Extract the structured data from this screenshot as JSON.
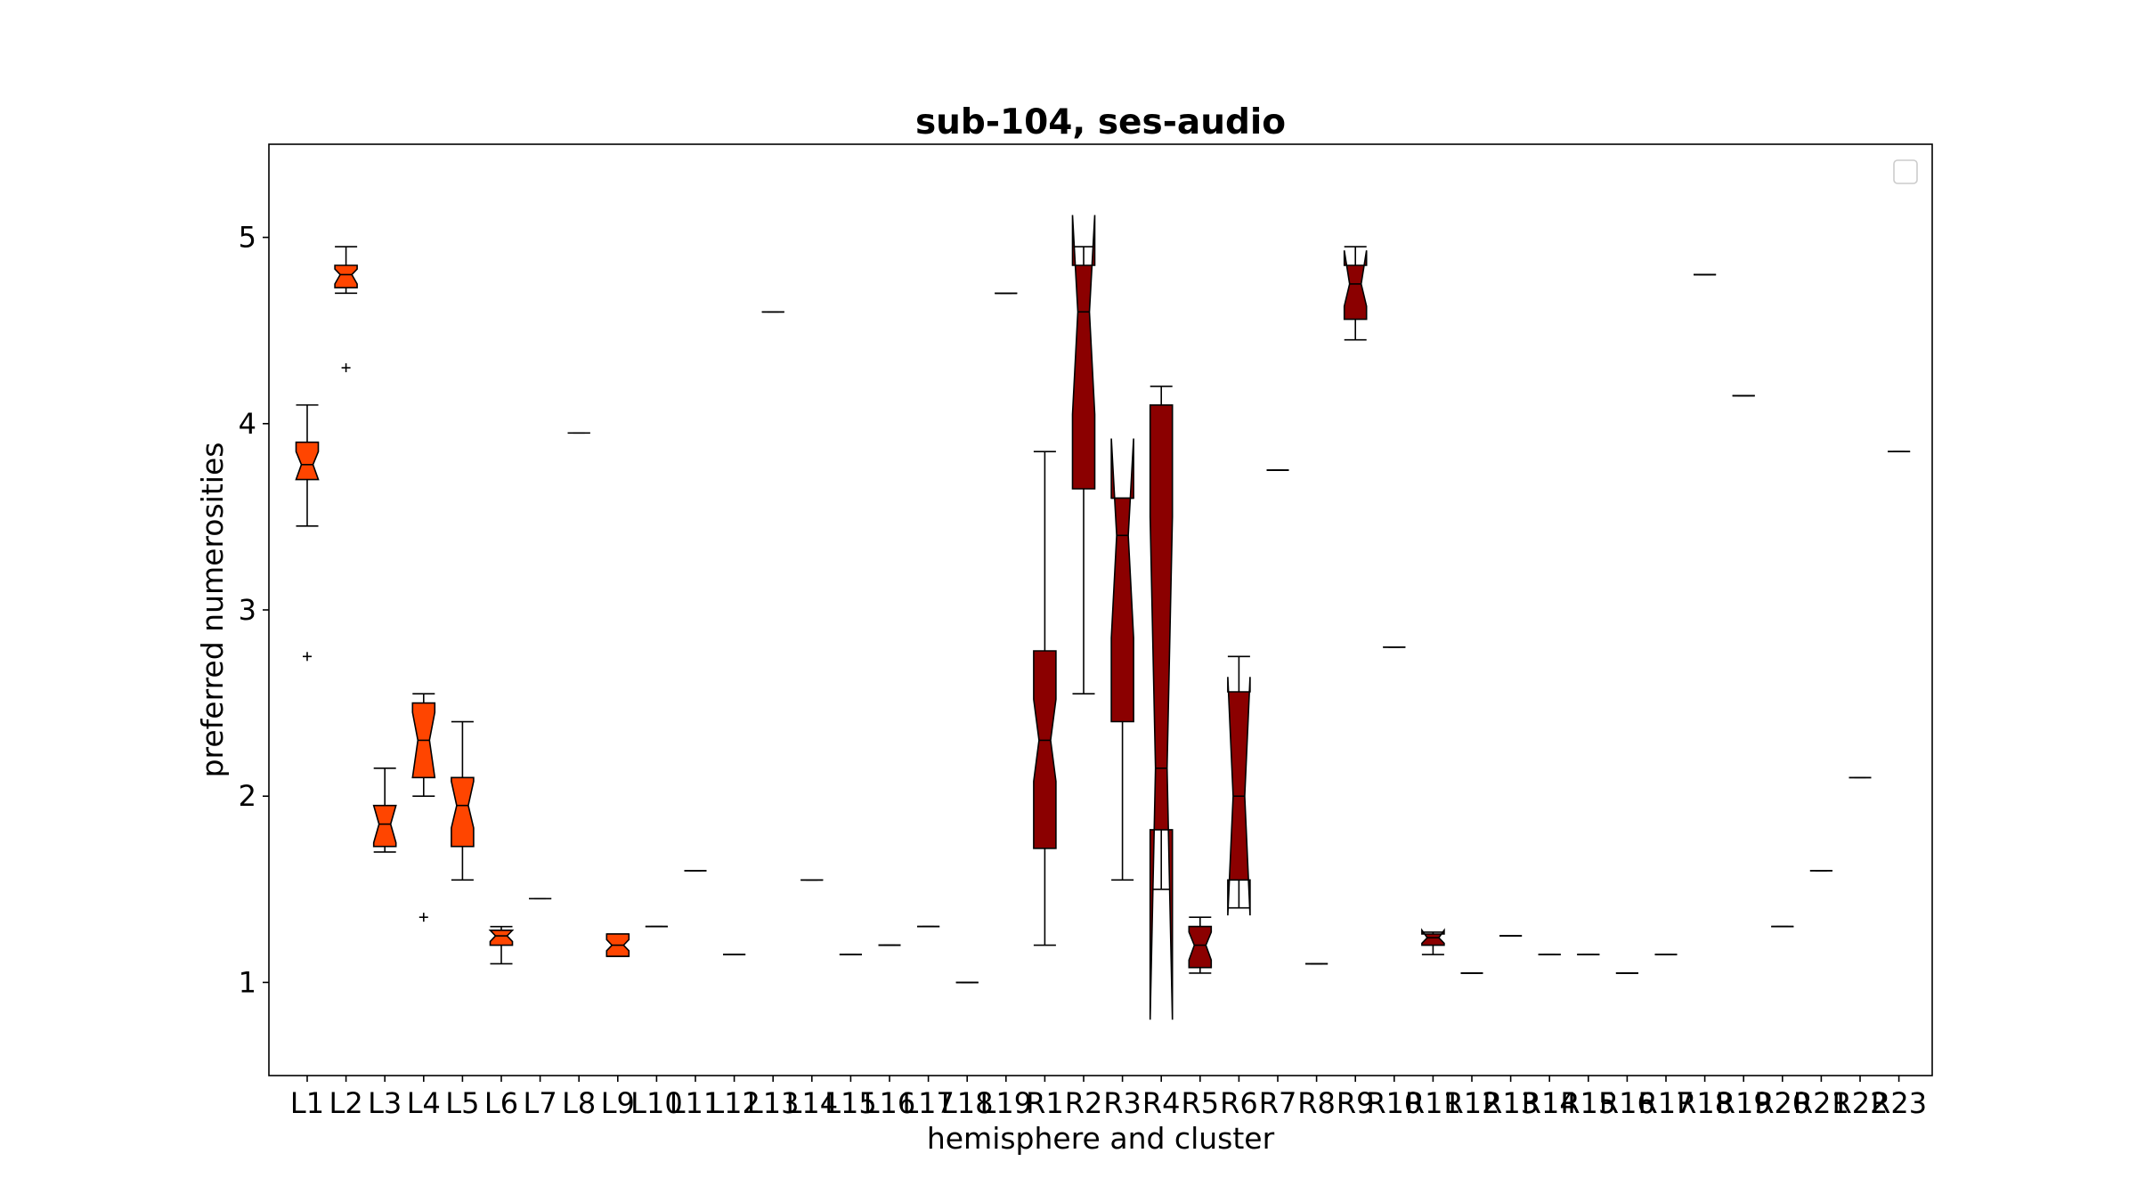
{
  "chart_data": {
    "type": "boxplot",
    "title": "sub-104, ses-audio",
    "xlabel": "hemisphere and cluster",
    "ylabel": "preferred numerosities",
    "ylim": [
      0.5,
      5.5
    ],
    "yticks": [
      1,
      2,
      3,
      4,
      5
    ],
    "notched": true,
    "legend": {
      "placement": "top-right",
      "entries": []
    },
    "colors": {
      "left": "#ff4500",
      "right": "#8b0000",
      "edge": "#000000"
    },
    "categories": [
      "L1",
      "L2",
      "L3",
      "L4",
      "L5",
      "L6",
      "L7",
      "L8",
      "L9",
      "L10",
      "L11",
      "L12",
      "L13",
      "L14",
      "L15",
      "L16",
      "L17",
      "L18",
      "L19",
      "R1",
      "R2",
      "R3",
      "R4",
      "R5",
      "R6",
      "R7",
      "R8",
      "R9",
      "R10",
      "R11",
      "R12",
      "R13",
      "R14",
      "R15",
      "R16",
      "R17",
      "R18",
      "R19",
      "R20",
      "R21",
      "R22",
      "R23"
    ],
    "boxes": [
      {
        "label": "L1",
        "group": "left",
        "whislo": 3.45,
        "q1": 3.7,
        "med": 3.78,
        "q3": 3.9,
        "whishi": 4.1,
        "notch_lo": 3.7,
        "notch_hi": 3.85,
        "fliers": [
          2.75
        ]
      },
      {
        "label": "L2",
        "group": "left",
        "whislo": 4.7,
        "q1": 4.73,
        "med": 4.8,
        "q3": 4.85,
        "whishi": 4.95,
        "notch_lo": 4.75,
        "notch_hi": 4.83,
        "fliers": [
          4.3
        ]
      },
      {
        "label": "L3",
        "group": "left",
        "whislo": 1.7,
        "q1": 1.73,
        "med": 1.85,
        "q3": 1.95,
        "whishi": 2.15,
        "notch_lo": 1.75,
        "notch_hi": 1.95,
        "fliers": []
      },
      {
        "label": "L4",
        "group": "left",
        "whislo": 2.0,
        "q1": 2.1,
        "med": 2.3,
        "q3": 2.5,
        "whishi": 2.55,
        "notch_lo": 2.1,
        "notch_hi": 2.45,
        "fliers": [
          1.35
        ]
      },
      {
        "label": "L5",
        "group": "left",
        "whislo": 1.55,
        "q1": 1.73,
        "med": 1.95,
        "q3": 2.1,
        "whishi": 2.4,
        "notch_lo": 1.83,
        "notch_hi": 2.08,
        "fliers": []
      },
      {
        "label": "L6",
        "group": "left",
        "whislo": 1.1,
        "q1": 1.2,
        "med": 1.25,
        "q3": 1.28,
        "whishi": 1.3,
        "notch_lo": 1.22,
        "notch_hi": 1.28,
        "fliers": []
      },
      {
        "label": "L7",
        "group": "left",
        "whislo": 1.45,
        "q1": 1.45,
        "med": 1.45,
        "q3": 1.45,
        "whishi": 1.45,
        "notch_lo": 1.45,
        "notch_hi": 1.45,
        "fliers": []
      },
      {
        "label": "L8",
        "group": "left",
        "whislo": 3.95,
        "q1": 3.95,
        "med": 3.95,
        "q3": 3.95,
        "whishi": 3.95,
        "notch_lo": 3.95,
        "notch_hi": 3.95,
        "fliers": []
      },
      {
        "label": "L9",
        "group": "left",
        "whislo": 1.14,
        "q1": 1.14,
        "med": 1.2,
        "q3": 1.26,
        "whishi": 1.26,
        "notch_lo": 1.17,
        "notch_hi": 1.23,
        "fliers": []
      },
      {
        "label": "L10",
        "group": "left",
        "whislo": 1.3,
        "q1": 1.3,
        "med": 1.3,
        "q3": 1.3,
        "whishi": 1.3,
        "notch_lo": 1.3,
        "notch_hi": 1.3,
        "fliers": []
      },
      {
        "label": "L11",
        "group": "left",
        "whislo": 1.6,
        "q1": 1.6,
        "med": 1.6,
        "q3": 1.6,
        "whishi": 1.6,
        "notch_lo": 1.6,
        "notch_hi": 1.6,
        "fliers": []
      },
      {
        "label": "L12",
        "group": "left",
        "whislo": 1.15,
        "q1": 1.15,
        "med": 1.15,
        "q3": 1.15,
        "whishi": 1.15,
        "notch_lo": 1.15,
        "notch_hi": 1.15,
        "fliers": []
      },
      {
        "label": "L13",
        "group": "left",
        "whislo": 4.6,
        "q1": 4.6,
        "med": 4.6,
        "q3": 4.6,
        "whishi": 4.6,
        "notch_lo": 4.6,
        "notch_hi": 4.6,
        "fliers": []
      },
      {
        "label": "L14",
        "group": "left",
        "whislo": 1.55,
        "q1": 1.55,
        "med": 1.55,
        "q3": 1.55,
        "whishi": 1.55,
        "notch_lo": 1.55,
        "notch_hi": 1.55,
        "fliers": []
      },
      {
        "label": "L15",
        "group": "left",
        "whislo": 1.15,
        "q1": 1.15,
        "med": 1.15,
        "q3": 1.15,
        "whishi": 1.15,
        "notch_lo": 1.15,
        "notch_hi": 1.15,
        "fliers": []
      },
      {
        "label": "L16",
        "group": "left",
        "whislo": 1.2,
        "q1": 1.2,
        "med": 1.2,
        "q3": 1.2,
        "whishi": 1.2,
        "notch_lo": 1.2,
        "notch_hi": 1.2,
        "fliers": []
      },
      {
        "label": "L17",
        "group": "left",
        "whislo": 1.3,
        "q1": 1.3,
        "med": 1.3,
        "q3": 1.3,
        "whishi": 1.3,
        "notch_lo": 1.3,
        "notch_hi": 1.3,
        "fliers": []
      },
      {
        "label": "L18",
        "group": "left",
        "whislo": 1.0,
        "q1": 1.0,
        "med": 1.0,
        "q3": 1.0,
        "whishi": 1.0,
        "notch_lo": 1.0,
        "notch_hi": 1.0,
        "fliers": []
      },
      {
        "label": "L19",
        "group": "left",
        "whislo": 4.7,
        "q1": 4.7,
        "med": 4.7,
        "q3": 4.7,
        "whishi": 4.7,
        "notch_lo": 4.7,
        "notch_hi": 4.7,
        "fliers": []
      },
      {
        "label": "R1",
        "group": "right",
        "whislo": 1.2,
        "q1": 1.72,
        "med": 2.3,
        "q3": 2.78,
        "whishi": 3.85,
        "notch_lo": 2.08,
        "notch_hi": 2.52,
        "fliers": []
      },
      {
        "label": "R2",
        "group": "right",
        "whislo": 2.55,
        "q1": 3.65,
        "med": 4.6,
        "q3": 4.85,
        "whishi": 4.95,
        "notch_lo": 4.05,
        "notch_hi": 5.12,
        "fliers": []
      },
      {
        "label": "R3",
        "group": "right",
        "whislo": 1.55,
        "q1": 2.4,
        "med": 3.4,
        "q3": 3.6,
        "whishi": 3.6,
        "notch_lo": 2.85,
        "notch_hi": 3.92,
        "fliers": []
      },
      {
        "label": "R4",
        "group": "right",
        "whislo": 1.5,
        "q1": 1.82,
        "med": 2.15,
        "q3": 4.1,
        "whishi": 4.2,
        "notch_lo": 0.8,
        "notch_hi": 3.5,
        "fliers": []
      },
      {
        "label": "R5",
        "group": "right",
        "whislo": 1.05,
        "q1": 1.08,
        "med": 1.2,
        "q3": 1.3,
        "whishi": 1.35,
        "notch_lo": 1.12,
        "notch_hi": 1.27,
        "fliers": []
      },
      {
        "label": "R6",
        "group": "right",
        "whislo": 1.4,
        "q1": 1.55,
        "med": 2.0,
        "q3": 2.56,
        "whishi": 2.75,
        "notch_lo": 1.36,
        "notch_hi": 2.64,
        "fliers": []
      },
      {
        "label": "R7",
        "group": "right",
        "whislo": 3.75,
        "q1": 3.75,
        "med": 3.75,
        "q3": 3.75,
        "whishi": 3.75,
        "notch_lo": 3.75,
        "notch_hi": 3.75,
        "fliers": []
      },
      {
        "label": "R8",
        "group": "right",
        "whislo": 1.1,
        "q1": 1.1,
        "med": 1.1,
        "q3": 1.1,
        "whishi": 1.1,
        "notch_lo": 1.1,
        "notch_hi": 1.1,
        "fliers": []
      },
      {
        "label": "R9",
        "group": "right",
        "whislo": 4.45,
        "q1": 4.56,
        "med": 4.75,
        "q3": 4.85,
        "whishi": 4.95,
        "notch_lo": 4.63,
        "notch_hi": 4.93,
        "fliers": []
      },
      {
        "label": "R10",
        "group": "right",
        "whislo": 2.8,
        "q1": 2.8,
        "med": 2.8,
        "q3": 2.8,
        "whishi": 2.8,
        "notch_lo": 2.8,
        "notch_hi": 2.8,
        "fliers": []
      },
      {
        "label": "R11",
        "group": "right",
        "whislo": 1.15,
        "q1": 1.2,
        "med": 1.24,
        "q3": 1.26,
        "whishi": 1.27,
        "notch_lo": 1.21,
        "notch_hi": 1.28,
        "fliers": []
      },
      {
        "label": "R12",
        "group": "right",
        "whislo": 1.05,
        "q1": 1.05,
        "med": 1.05,
        "q3": 1.05,
        "whishi": 1.05,
        "notch_lo": 1.05,
        "notch_hi": 1.05,
        "fliers": []
      },
      {
        "label": "R13",
        "group": "right",
        "whislo": 1.25,
        "q1": 1.25,
        "med": 1.25,
        "q3": 1.25,
        "whishi": 1.25,
        "notch_lo": 1.25,
        "notch_hi": 1.25,
        "fliers": []
      },
      {
        "label": "R14",
        "group": "right",
        "whislo": 1.15,
        "q1": 1.15,
        "med": 1.15,
        "q3": 1.15,
        "whishi": 1.15,
        "notch_lo": 1.15,
        "notch_hi": 1.15,
        "fliers": []
      },
      {
        "label": "R15",
        "group": "right",
        "whislo": 1.15,
        "q1": 1.15,
        "med": 1.15,
        "q3": 1.15,
        "whishi": 1.15,
        "notch_lo": 1.15,
        "notch_hi": 1.15,
        "fliers": []
      },
      {
        "label": "R16",
        "group": "right",
        "whislo": 1.05,
        "q1": 1.05,
        "med": 1.05,
        "q3": 1.05,
        "whishi": 1.05,
        "notch_lo": 1.05,
        "notch_hi": 1.05,
        "fliers": []
      },
      {
        "label": "R17",
        "group": "right",
        "whislo": 1.15,
        "q1": 1.15,
        "med": 1.15,
        "q3": 1.15,
        "whishi": 1.15,
        "notch_lo": 1.15,
        "notch_hi": 1.15,
        "fliers": []
      },
      {
        "label": "R18",
        "group": "right",
        "whislo": 4.8,
        "q1": 4.8,
        "med": 4.8,
        "q3": 4.8,
        "whishi": 4.8,
        "notch_lo": 4.8,
        "notch_hi": 4.8,
        "fliers": []
      },
      {
        "label": "R19",
        "group": "right",
        "whislo": 4.15,
        "q1": 4.15,
        "med": 4.15,
        "q3": 4.15,
        "whishi": 4.15,
        "notch_lo": 4.15,
        "notch_hi": 4.15,
        "fliers": []
      },
      {
        "label": "R20",
        "group": "right",
        "whislo": 1.3,
        "q1": 1.3,
        "med": 1.3,
        "q3": 1.3,
        "whishi": 1.3,
        "notch_lo": 1.3,
        "notch_hi": 1.3,
        "fliers": []
      },
      {
        "label": "R21",
        "group": "right",
        "whislo": 1.6,
        "q1": 1.6,
        "med": 1.6,
        "q3": 1.6,
        "whishi": 1.6,
        "notch_lo": 1.6,
        "notch_hi": 1.6,
        "fliers": []
      },
      {
        "label": "R22",
        "group": "right",
        "whislo": 2.1,
        "q1": 2.1,
        "med": 2.1,
        "q3": 2.1,
        "whishi": 2.1,
        "notch_lo": 2.1,
        "notch_hi": 2.1,
        "fliers": []
      },
      {
        "label": "R23",
        "group": "right",
        "whislo": 3.85,
        "q1": 3.85,
        "med": 3.85,
        "q3": 3.85,
        "whishi": 3.85,
        "notch_lo": 3.85,
        "notch_hi": 3.85,
        "fliers": []
      }
    ]
  }
}
